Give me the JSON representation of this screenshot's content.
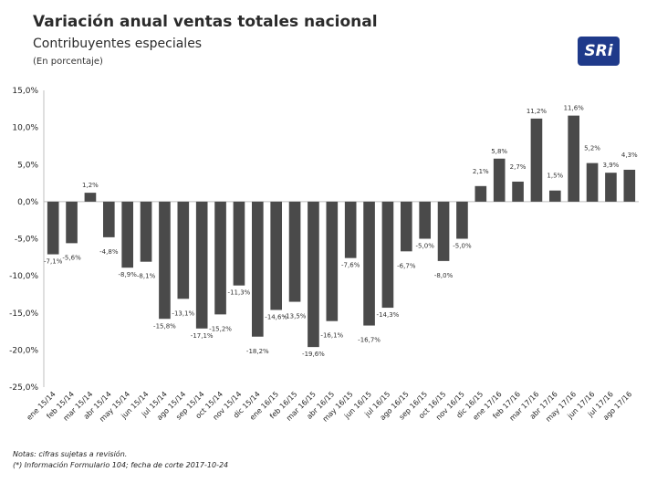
{
  "header": {
    "title": "Variación anual ventas totales nacional",
    "subtitle": "Contribuyentes especiales",
    "unit_note": "(En porcentaje)",
    "logo_text": "SRi"
  },
  "notes": [
    "Notas: cifras sujetas a revisión.",
    "(*) Información Formulario 104; fecha de corte 2017-10-24"
  ],
  "colors": {
    "bar": "#4a4a4a",
    "axis": "#bfbfbf",
    "logo": "#1f3a8a"
  },
  "chart_data": {
    "type": "bar",
    "title": "Variación anual ventas totales nacional",
    "ylim": [
      -25,
      15
    ],
    "y_ticks": [
      15,
      10,
      5,
      0,
      -5,
      -10,
      -15,
      -20,
      -25
    ],
    "y_tick_labels": [
      "15,0%",
      "10,0%",
      "5,0%",
      "0,0%",
      "-5,0%",
      "-10,0%",
      "-15,0%",
      "-20,0%",
      "-25,0%"
    ],
    "grid": false,
    "categories": [
      "ene 15/14",
      "feb 15/14",
      "mar 15/14",
      "abr 15/14",
      "may 15/14",
      "jun 15/14",
      "jul 15/14",
      "ago 15/14",
      "sep 15/14",
      "oct 15/14",
      "nov 15/14",
      "dic 15/14",
      "ene 16/15",
      "feb 16/15",
      "mar 16/15",
      "abr 16/15",
      "may 16/15",
      "jun 16/15",
      "jul 16/15",
      "ago 16/15",
      "sep 16/15",
      "oct 16/15",
      "nov 16/15",
      "dic 16/15",
      "ene 17/16",
      "feb 17/16",
      "mar 17/16",
      "abr 17/16",
      "may 17/16",
      "jun 17/16",
      "jul 17/16",
      "ago 17/16"
    ],
    "values": [
      -7.1,
      -5.6,
      1.2,
      -4.8,
      -8.9,
      -8.1,
      -15.8,
      -13.1,
      -17.1,
      -15.2,
      -11.3,
      -18.2,
      -14.6,
      -13.5,
      -19.6,
      -16.1,
      -7.6,
      -16.7,
      -14.3,
      -6.7,
      -5.0,
      -8.0,
      -5.0,
      2.1,
      5.8,
      2.7,
      11.2,
      1.5,
      11.6,
      5.2,
      3.9,
      4.3
    ],
    "labels": [
      "-7,1%",
      "-5,6%",
      "1,2%",
      "-4,8%",
      "-8,9%",
      "-8,1%",
      "-15,8%",
      "-13,1%",
      "-17,1%",
      "-15,2%",
      "-11,3%",
      "-18,2%",
      "-14,6%",
      "-13,5%",
      "-19,6%",
      "-16,1%",
      "-7,6%",
      "-16,7%",
      "-14,3%",
      "-6,7%",
      "-5,0%",
      "-8,0%",
      "-5,0%",
      "2,1%",
      "5,8%",
      "2,7%",
      "11,2%",
      "1,5%",
      "11,6%",
      "5,2%",
      "3,9%",
      "4,3%"
    ]
  }
}
